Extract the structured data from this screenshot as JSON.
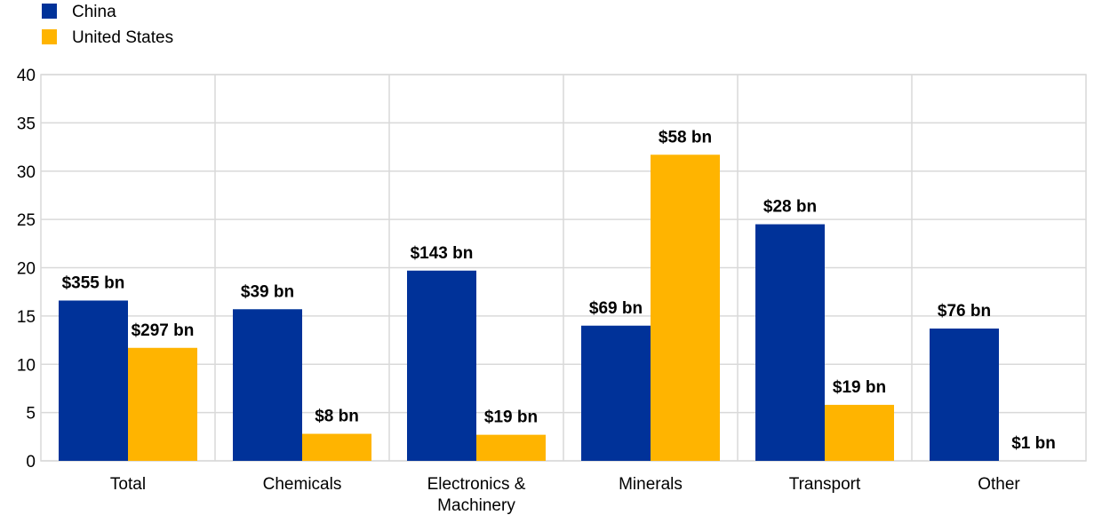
{
  "chart_data": {
    "type": "bar",
    "title": "",
    "xlabel": "",
    "ylabel": "",
    "ylim": [
      0,
      40
    ],
    "yticks": [
      0,
      5,
      10,
      15,
      20,
      25,
      30,
      35,
      40
    ],
    "grid": true,
    "legend_position": "top-left",
    "categories": [
      [
        "Total"
      ],
      [
        "Chemicals"
      ],
      [
        "Electronics &",
        "Machinery"
      ],
      [
        "Minerals"
      ],
      [
        "Transport"
      ],
      [
        "Other"
      ]
    ],
    "series": [
      {
        "name": "China",
        "color": "#003299",
        "values": [
          16.6,
          15.7,
          19.7,
          14.0,
          24.5,
          13.7
        ],
        "labels": [
          "$355 bn",
          "$39 bn",
          "$143 bn",
          "$69 bn",
          "$28 bn",
          "$76 bn"
        ]
      },
      {
        "name": "United States",
        "color": "#FFB400",
        "values": [
          11.7,
          2.8,
          2.7,
          31.7,
          5.8,
          0.0
        ],
        "labels": [
          "$297 bn",
          "$8 bn",
          "$19 bn",
          "$58 bn",
          "$19 bn",
          "$1 bn"
        ]
      }
    ]
  }
}
